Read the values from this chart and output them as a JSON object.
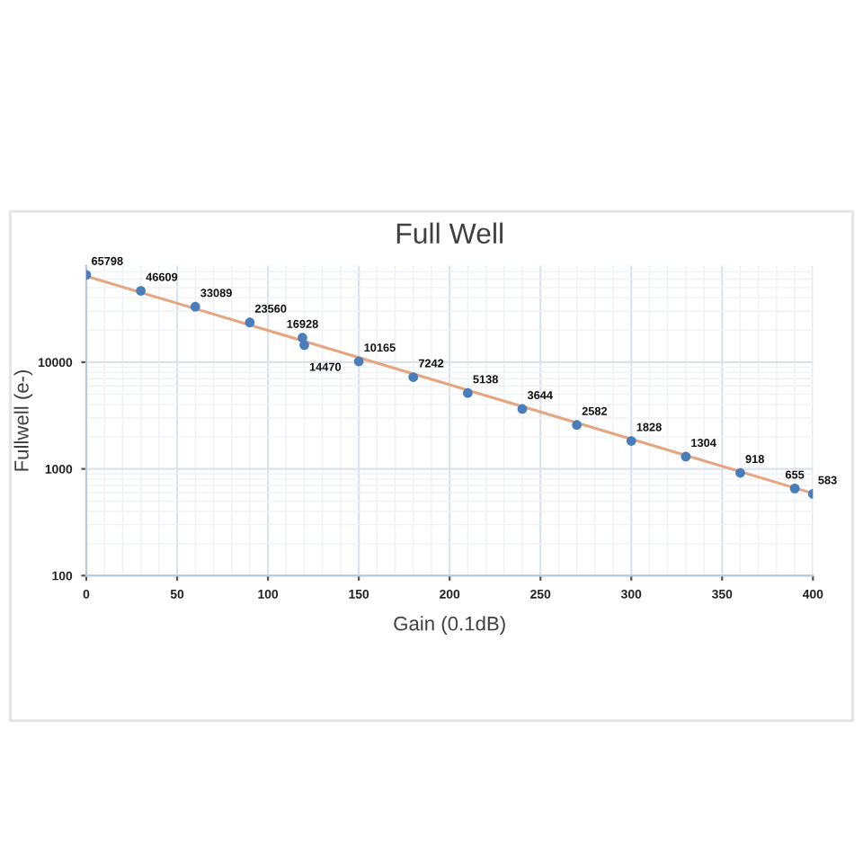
{
  "chart_data": {
    "type": "scatter",
    "title": "Full Well",
    "xlabel": "Gain (0.1dB)",
    "ylabel": "Fullwell (e-)",
    "x": [
      0,
      30,
      60,
      90,
      119,
      120,
      150,
      180,
      210,
      240,
      270,
      300,
      330,
      360,
      390,
      400
    ],
    "series": [
      {
        "color": "#4a7ebb",
        "marker": "circle",
        "data_labels": true,
        "values": [
          65798,
          46609,
          33089,
          23560,
          16928,
          14470,
          10165,
          7242,
          5138,
          3644,
          2582,
          1828,
          1304,
          918,
          655,
          583
        ]
      },
      {
        "type": "line",
        "x": [
          0,
          400
        ],
        "values": [
          64000,
          590
        ],
        "color": "#e6a57e",
        "marker": "none",
        "line_style": "solid"
      }
    ],
    "xlim": [
      0,
      400
    ],
    "xticks": [
      0,
      50,
      100,
      150,
      200,
      250,
      300,
      350,
      400
    ],
    "ylim": [
      100,
      80000
    ],
    "yticks": [
      100,
      1000,
      10000
    ],
    "log": "y",
    "grid": true,
    "legend": false
  }
}
